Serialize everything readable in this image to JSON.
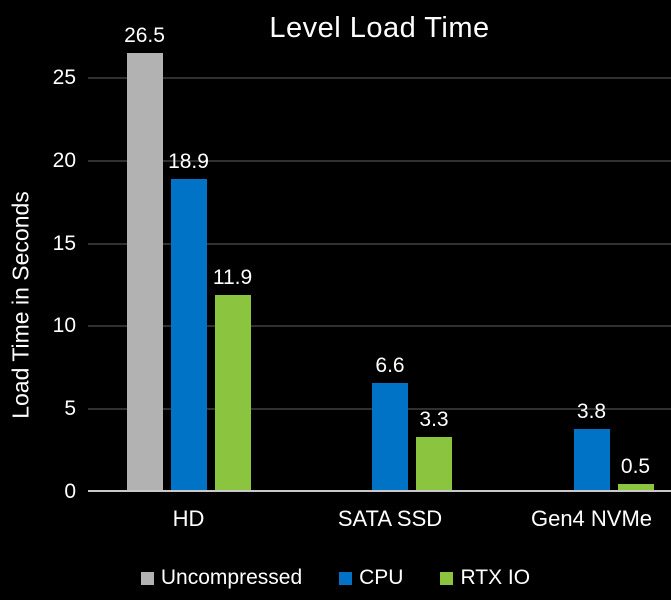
{
  "chart_data": {
    "type": "bar",
    "title": "Level Load Time",
    "xlabel": "",
    "ylabel": "Load Time in Seconds",
    "categories": [
      "HD",
      "SATA SSD",
      "Gen4 NVMe"
    ],
    "series": [
      {
        "name": "Uncompressed",
        "color": "#b2b2b2",
        "values": [
          26.5,
          null,
          null
        ]
      },
      {
        "name": "CPU",
        "color": "#0073c7",
        "values": [
          18.9,
          6.6,
          3.8
        ]
      },
      {
        "name": "RTX IO",
        "color": "#8bc53f",
        "values": [
          11.9,
          3.3,
          0.5
        ]
      }
    ],
    "ylim": [
      0,
      25
    ],
    "yticks": [
      0,
      5,
      10,
      15,
      20,
      25
    ],
    "grid": true,
    "legend_position": "bottom"
  },
  "colors": {
    "background": "#000000",
    "text": "#ffffff",
    "gridline": "#303030",
    "axis_line": "#c9c9c9"
  }
}
